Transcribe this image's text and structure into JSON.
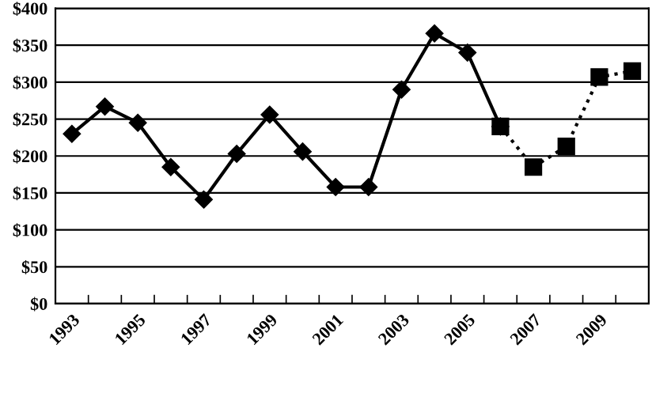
{
  "chart_data": {
    "type": "line",
    "categories": [
      "1993",
      null,
      "1995",
      null,
      "1997",
      null,
      "1999",
      null,
      "2001",
      null,
      "2003",
      null,
      "2005",
      null,
      "2007",
      null,
      "2009",
      null
    ],
    "series": [
      {
        "color": "#000000",
        "marker": "diamond",
        "line_style": "solid",
        "values": [
          230,
          267,
          245,
          185,
          141,
          203,
          256,
          206,
          158,
          158,
          290,
          366,
          340,
          240,
          null,
          null,
          null,
          null
        ]
      },
      {
        "color": "#000000",
        "marker": "square",
        "line_style": "dotted",
        "values": [
          null,
          null,
          null,
          null,
          null,
          null,
          null,
          null,
          null,
          null,
          null,
          null,
          null,
          240,
          185,
          213,
          307,
          315
        ]
      }
    ],
    "ylim": [
      0,
      400
    ],
    "yticks": [
      {
        "value": 0,
        "label": "$0"
      },
      {
        "value": 50,
        "label": "$50"
      },
      {
        "value": 100,
        "label": "$100"
      },
      {
        "value": 150,
        "label": "$150"
      },
      {
        "value": 200,
        "label": "$200"
      },
      {
        "value": 250,
        "label": "$250"
      },
      {
        "value": 300,
        "label": "$300"
      },
      {
        "value": 350,
        "label": "$350"
      },
      {
        "value": 400,
        "label": "$400"
      }
    ],
    "grid": "y",
    "legend": false
  }
}
